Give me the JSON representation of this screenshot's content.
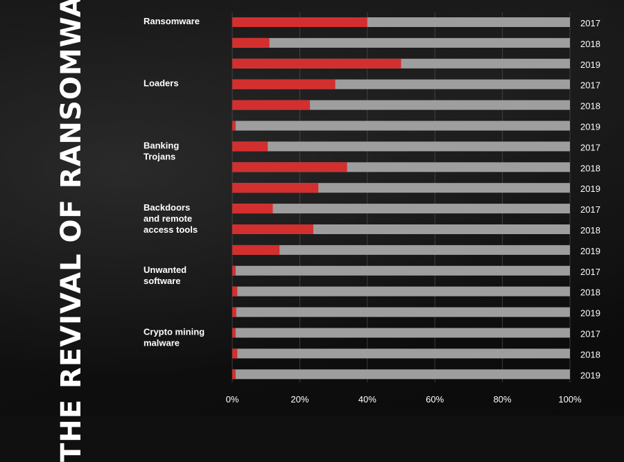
{
  "title": "THE REVIVAL OF RANSOMWARE",
  "colors": {
    "value": "#d32f2f",
    "remainder": "#9e9e9e",
    "text": "#ffffff"
  },
  "chart_data": {
    "type": "bar",
    "orientation": "horizontal",
    "stacked_to_100": true,
    "title": "THE REVIVAL OF RANSOMWARE",
    "xlim": [
      0,
      100
    ],
    "ticks": [
      "0%",
      "20%",
      "40%",
      "60%",
      "80%",
      "100%"
    ],
    "grid": true,
    "groups": [
      {
        "label": [
          "Ransomware"
        ],
        "years": [
          "2017",
          "2018",
          "2019"
        ],
        "values": [
          40,
          11,
          50
        ]
      },
      {
        "label": [
          "Loaders"
        ],
        "years": [
          "2017",
          "2018",
          "2019"
        ],
        "values": [
          30.5,
          23,
          1
        ]
      },
      {
        "label": [
          "Banking",
          "Trojans"
        ],
        "years": [
          "2017",
          "2018",
          "2019"
        ],
        "values": [
          10.5,
          34,
          25.5
        ]
      },
      {
        "label": [
          "Backdoors",
          "and remote",
          "access tools"
        ],
        "years": [
          "2017",
          "2018",
          "2019"
        ],
        "values": [
          12,
          24,
          14
        ]
      },
      {
        "label": [
          "Unwanted",
          "software"
        ],
        "years": [
          "2017",
          "2018",
          "2019"
        ],
        "values": [
          1,
          1.5,
          1.2
        ]
      },
      {
        "label": [
          "Crypto mining",
          "malware"
        ],
        "years": [
          "2017",
          "2018",
          "2019"
        ],
        "values": [
          1,
          1.5,
          1
        ]
      }
    ]
  }
}
